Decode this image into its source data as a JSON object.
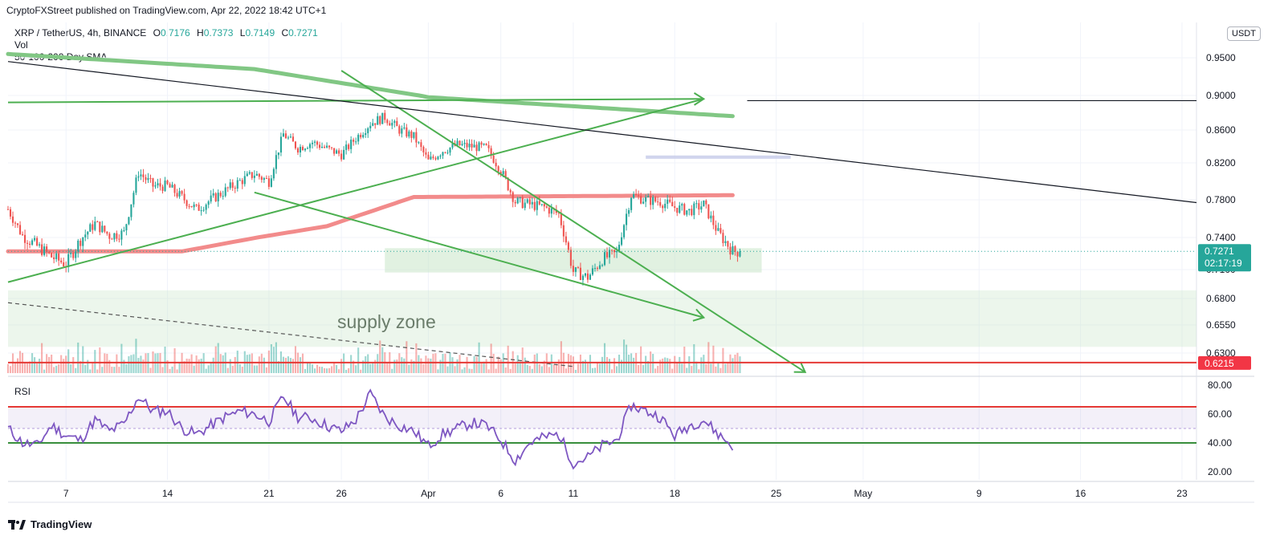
{
  "credit": "CryptoFXStreet published on TradingView.com, Apr 22, 2022 18:42 UTC+1",
  "legend": {
    "symbol": "XRP / TetherUS, 4h, BINANCE",
    "open_label": "O",
    "open": "0.7176",
    "high_label": "H",
    "high": "0.7373",
    "low_label": "L",
    "low": "0.7149",
    "close_label": "C",
    "close": "0.7271",
    "volume_label": "Vol",
    "sma_label": "50-100-200 Day SMA"
  },
  "currency_badge": "USDT",
  "rsi_label": "RSI",
  "footer": {
    "brand": "TradingView",
    "logo_icon": "tradingview-logo-icon"
  },
  "colors": {
    "up": "#26a69a",
    "down": "#ef5350",
    "sma_green": "#81c784",
    "sma_red": "#f28b8b",
    "trendline_green": "#4caf50",
    "resistance_red": "#e53935",
    "rsi_line": "#7e57c2",
    "zone_green": "#c8e6c9",
    "zone_blue": "#c5cae9",
    "price_badge": "#26a69a",
    "level_badge": "#f23645"
  },
  "chart_data": {
    "type": "candlestick",
    "symbol": "XRP / TetherUS",
    "timeframe": "4h",
    "exchange": "BINANCE",
    "current_price": 0.7271,
    "countdown": "02:17:19",
    "price_axis": {
      "ticks": [
        "0.9500",
        "0.9000",
        "0.8600",
        "0.8200",
        "0.7800",
        "0.7400",
        "0.7100",
        "0.6800",
        "0.6550",
        "0.6300"
      ],
      "min": 0.62,
      "max": 0.96
    },
    "date_axis": {
      "ticks": [
        "7",
        "14",
        "21",
        "26",
        "Apr",
        "6",
        "11",
        "18",
        "25",
        "May",
        "9",
        "16",
        "23"
      ],
      "range": [
        "2022-03-03",
        "2022-05-24"
      ]
    },
    "last_candle_date": "2022-04-22",
    "price_path": [
      [
        "2022-03-03",
        0.77
      ],
      [
        "2022-03-04",
        0.742
      ],
      [
        "2022-03-06",
        0.722
      ],
      [
        "2022-03-07",
        0.715
      ],
      [
        "2022-03-08",
        0.738
      ],
      [
        "2022-03-09",
        0.755
      ],
      [
        "2022-03-10",
        0.742
      ],
      [
        "2022-03-11",
        0.745
      ],
      [
        "2022-03-12",
        0.81
      ],
      [
        "2022-03-13",
        0.795
      ],
      [
        "2022-03-14",
        0.795
      ],
      [
        "2022-03-16",
        0.77
      ],
      [
        "2022-03-18",
        0.79
      ],
      [
        "2022-03-19",
        0.8
      ],
      [
        "2022-03-20",
        0.808
      ],
      [
        "2022-03-21",
        0.8
      ],
      [
        "2022-03-22",
        0.855
      ],
      [
        "2022-03-23",
        0.838
      ],
      [
        "2022-03-24",
        0.845
      ],
      [
        "2022-03-26",
        0.83
      ],
      [
        "2022-03-27",
        0.85
      ],
      [
        "2022-03-28",
        0.868
      ],
      [
        "2022-03-29",
        0.875
      ],
      [
        "2022-03-30",
        0.86
      ],
      [
        "2022-03-31",
        0.852
      ],
      [
        "2022-04-01",
        0.822
      ],
      [
        "2022-04-02",
        0.835
      ],
      [
        "2022-04-03",
        0.842
      ],
      [
        "2022-04-04",
        0.84
      ],
      [
        "2022-04-05",
        0.838
      ],
      [
        "2022-04-06",
        0.812
      ],
      [
        "2022-04-07",
        0.778
      ],
      [
        "2022-04-08",
        0.775
      ],
      [
        "2022-04-09",
        0.772
      ],
      [
        "2022-04-10",
        0.765
      ],
      [
        "2022-04-11",
        0.708
      ],
      [
        "2022-04-12",
        0.702
      ],
      [
        "2022-04-13",
        0.72
      ],
      [
        "2022-04-14",
        0.725
      ],
      [
        "2022-04-15",
        0.785
      ],
      [
        "2022-04-16",
        0.78
      ],
      [
        "2022-04-17",
        0.778
      ],
      [
        "2022-04-18",
        0.772
      ],
      [
        "2022-04-19",
        0.768
      ],
      [
        "2022-04-20",
        0.775
      ],
      [
        "2022-04-21",
        0.745
      ],
      [
        "2022-04-22",
        0.727
      ]
    ],
    "sma_200": [
      [
        "2022-03-03",
        0.955
      ],
      [
        "2022-03-20",
        0.935
      ],
      [
        "2022-04-01",
        0.898
      ],
      [
        "2022-04-22",
        0.876
      ]
    ],
    "sma_100": [
      [
        "2022-03-03",
        0.727
      ],
      [
        "2022-03-15",
        0.727
      ],
      [
        "2022-03-25",
        0.752
      ],
      [
        "2022-03-31",
        0.783
      ],
      [
        "2022-04-22",
        0.785
      ]
    ],
    "hline_black": {
      "date_start": "2022-04-23",
      "date_end": "2022-05-24",
      "y": 0.894
    },
    "trendlines": [
      {
        "color": "green",
        "points": [
          [
            "2022-03-03",
            0.892
          ],
          [
            "2022-04-20",
            0.896
          ]
        ],
        "arrow": true
      },
      {
        "color": "green",
        "points": [
          [
            "2022-03-03",
            0.697
          ],
          [
            "2022-04-20",
            0.896
          ]
        ],
        "arrow": false
      },
      {
        "color": "green",
        "points": [
          [
            "2022-03-26",
            0.933
          ],
          [
            "2022-04-27",
            0.613
          ]
        ],
        "arrow": true
      },
      {
        "color": "green",
        "points": [
          [
            "2022-03-20",
            0.788
          ],
          [
            "2022-04-20",
            0.662
          ]
        ],
        "arrow": true
      },
      {
        "color": "black",
        "points": [
          [
            "2022-03-03",
            0.945
          ],
          [
            "2022-05-24",
            0.777
          ]
        ],
        "arrow": false
      }
    ],
    "zones": [
      {
        "name": "support box",
        "date_start": "2022-03-29",
        "date_end": "2022-04-24",
        "top": 0.73,
        "bottom": 0.707,
        "color": "green"
      },
      {
        "name": "blue box",
        "date_start": "2022-04-16",
        "date_end": "2022-04-26",
        "top": 0.829,
        "bottom": 0.825,
        "color": "blue"
      },
      {
        "name": "supply zone",
        "date_start": "2022-03-03",
        "date_end": "2022-05-24",
        "top": 0.6885,
        "bottom": 0.6355,
        "color": "green"
      }
    ],
    "annotation": "supply zone",
    "resistance_line": {
      "y": 0.6215,
      "label": "0.6215"
    },
    "rsi": {
      "ticks": [
        "80.00",
        "60.00",
        "40.00",
        "20.00"
      ],
      "min": 13,
      "max": 85,
      "upper_level": 65,
      "lower_level": 40,
      "band": [
        50,
        65
      ],
      "values": [
        [
          "2022-03-03",
          50
        ],
        [
          "2022-03-04",
          40
        ],
        [
          "2022-03-05",
          38
        ],
        [
          "2022-03-06",
          52
        ],
        [
          "2022-03-07",
          45
        ],
        [
          "2022-03-08",
          42
        ],
        [
          "2022-03-09",
          56
        ],
        [
          "2022-03-10",
          48
        ],
        [
          "2022-03-11",
          53
        ],
        [
          "2022-03-12",
          72
        ],
        [
          "2022-03-13",
          62
        ],
        [
          "2022-03-14",
          62
        ],
        [
          "2022-03-15",
          50
        ],
        [
          "2022-03-16",
          46
        ],
        [
          "2022-03-17",
          52
        ],
        [
          "2022-03-18",
          58
        ],
        [
          "2022-03-19",
          62
        ],
        [
          "2022-03-20",
          60
        ],
        [
          "2022-03-21",
          55
        ],
        [
          "2022-03-22",
          72
        ],
        [
          "2022-03-23",
          58
        ],
        [
          "2022-03-24",
          57
        ],
        [
          "2022-03-25",
          52
        ],
        [
          "2022-03-26",
          48
        ],
        [
          "2022-03-27",
          56
        ],
        [
          "2022-03-28",
          74
        ],
        [
          "2022-03-29",
          58
        ],
        [
          "2022-03-30",
          52
        ],
        [
          "2022-03-31",
          48
        ],
        [
          "2022-04-01",
          38
        ],
        [
          "2022-04-02",
          46
        ],
        [
          "2022-04-03",
          50
        ],
        [
          "2022-04-04",
          54
        ],
        [
          "2022-04-05",
          52
        ],
        [
          "2022-04-06",
          42
        ],
        [
          "2022-04-07",
          28
        ],
        [
          "2022-04-08",
          40
        ],
        [
          "2022-04-09",
          44
        ],
        [
          "2022-04-10",
          46
        ],
        [
          "2022-04-11",
          26
        ],
        [
          "2022-04-12",
          30
        ],
        [
          "2022-04-13",
          38
        ],
        [
          "2022-04-14",
          42
        ],
        [
          "2022-04-15",
          66
        ],
        [
          "2022-04-16",
          62
        ],
        [
          "2022-04-17",
          58
        ],
        [
          "2022-04-18",
          45
        ],
        [
          "2022-04-19",
          52
        ],
        [
          "2022-04-20",
          56
        ],
        [
          "2022-04-21",
          46
        ],
        [
          "2022-04-22",
          38
        ]
      ]
    }
  }
}
